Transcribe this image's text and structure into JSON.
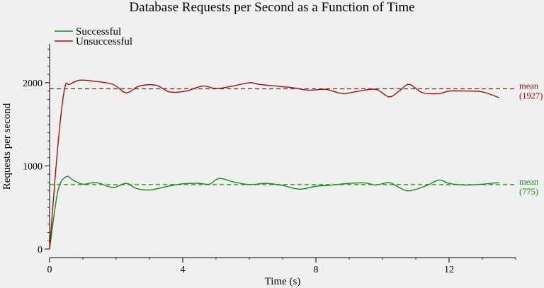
{
  "chart_data": {
    "type": "line",
    "title": "Database Requests per Second as a Function of Time",
    "xlabel": "Time (s)",
    "ylabel": "Requests per second",
    "xlim": [
      0,
      14
    ],
    "ylim": [
      0,
      2450
    ],
    "xticks": [
      0,
      4,
      8,
      12
    ],
    "yticks": [
      0,
      1000,
      2000
    ],
    "x_minor_step": 1,
    "y_minor_step": 100,
    "legend_position": "top-left",
    "series": [
      {
        "name": "Successful",
        "color": "#1a8a1a",
        "mean": 775,
        "mean_label": "mean",
        "mean_value_label": "(775)",
        "x": [
          0,
          0.25,
          0.5,
          0.7,
          1.0,
          1.4,
          1.9,
          2.3,
          2.6,
          3.0,
          3.5,
          4.0,
          4.5,
          4.8,
          5.1,
          5.5,
          6.0,
          6.5,
          7.0,
          7.5,
          8.0,
          8.5,
          9.0,
          9.5,
          9.8,
          10.2,
          10.5,
          10.8,
          11.3,
          11.7,
          12.0,
          12.5,
          13.0,
          13.5
        ],
        "values": [
          0,
          700,
          870,
          830,
          780,
          800,
          740,
          790,
          730,
          710,
          750,
          785,
          790,
          780,
          850,
          810,
          775,
          790,
          765,
          720,
          755,
          770,
          790,
          795,
          770,
          800,
          740,
          700,
          760,
          830,
          790,
          770,
          780,
          800
        ]
      },
      {
        "name": "Unsuccessful",
        "color": "#a01010",
        "mean": 1927,
        "mean_label": "mean",
        "mean_value_label": "(1927)",
        "x": [
          0,
          0.25,
          0.45,
          0.6,
          0.9,
          1.3,
          1.9,
          2.3,
          2.7,
          3.2,
          3.6,
          4.1,
          4.6,
          5.0,
          5.5,
          6.0,
          6.3,
          6.8,
          7.3,
          7.8,
          8.3,
          8.8,
          9.3,
          9.8,
          10.2,
          10.5,
          10.8,
          11.2,
          11.7,
          12.0,
          12.5,
          13.0,
          13.5
        ],
        "values": [
          0,
          1250,
          1930,
          1980,
          2030,
          2020,
          1980,
          1880,
          1960,
          1970,
          1890,
          1900,
          1960,
          1930,
          1960,
          2000,
          1980,
          1960,
          1940,
          1910,
          1920,
          1870,
          1900,
          1920,
          1830,
          1900,
          1980,
          1880,
          1870,
          1900,
          1900,
          1890,
          1820
        ]
      }
    ]
  }
}
